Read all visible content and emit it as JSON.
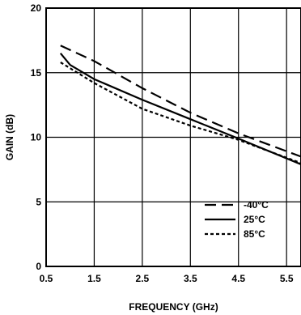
{
  "chart_data": {
    "type": "line",
    "title": "",
    "xlabel": "FREQUENCY (GHz)",
    "ylabel": "GAIN (dB)",
    "xlim": [
      0.5,
      5.8
    ],
    "ylim": [
      0,
      20
    ],
    "x_ticks": [
      0.5,
      1.5,
      2.5,
      3.5,
      4.5,
      5.5
    ],
    "y_ticks": [
      0,
      5,
      10,
      15,
      20
    ],
    "x_tick_labels": [
      "0.5",
      "1.5",
      "2.5",
      "3.5",
      "4.5",
      "5.5"
    ],
    "y_tick_labels": [
      "0",
      "5",
      "10",
      "15",
      "20"
    ],
    "grid": true,
    "legend_position": "bottom-right",
    "series": [
      {
        "name": "-40°C",
        "style": "dashed",
        "x": [
          0.8,
          1.5,
          2.5,
          3.5,
          4.5,
          5.8
        ],
        "y": [
          17.1,
          15.9,
          13.8,
          11.9,
          10.3,
          8.5
        ]
      },
      {
        "name": "25°C",
        "style": "solid",
        "x": [
          0.8,
          1.0,
          1.5,
          2.5,
          3.5,
          4.5,
          5.8
        ],
        "y": [
          16.5,
          15.6,
          14.5,
          12.9,
          11.4,
          9.9,
          7.9
        ]
      },
      {
        "name": "85°C",
        "style": "dotted",
        "x": [
          0.8,
          1.5,
          2.5,
          3.5,
          4.5,
          5.8
        ],
        "y": [
          15.8,
          14.2,
          12.2,
          10.9,
          9.8,
          8.0
        ]
      }
    ]
  }
}
